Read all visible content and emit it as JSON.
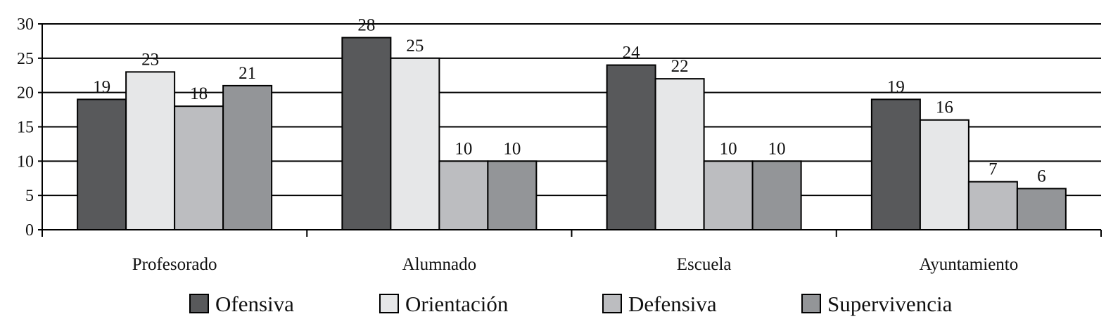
{
  "chart_data": {
    "type": "bar",
    "title": "",
    "xlabel": "",
    "ylabel": "",
    "categories": [
      "Profesorado",
      "Alumnado",
      "Escuela",
      "Ayuntamiento"
    ],
    "series": [
      {
        "name": "Ofensiva",
        "color": "#58595b",
        "values": [
          19,
          28,
          24,
          19
        ]
      },
      {
        "name": "Orientación",
        "color": "#e6e7e8",
        "values": [
          23,
          25,
          22,
          16
        ]
      },
      {
        "name": "Defensiva",
        "color": "#bcbdc0",
        "values": [
          18,
          10,
          10,
          7
        ]
      },
      {
        "name": "Supervivencia",
        "color": "#939598",
        "values": [
          21,
          10,
          10,
          6
        ]
      }
    ],
    "ylim": [
      0,
      30
    ],
    "yticks": [
      0,
      5,
      10,
      15,
      20,
      25,
      30
    ],
    "grid": true,
    "legend": "bottom",
    "data_labels": true
  }
}
